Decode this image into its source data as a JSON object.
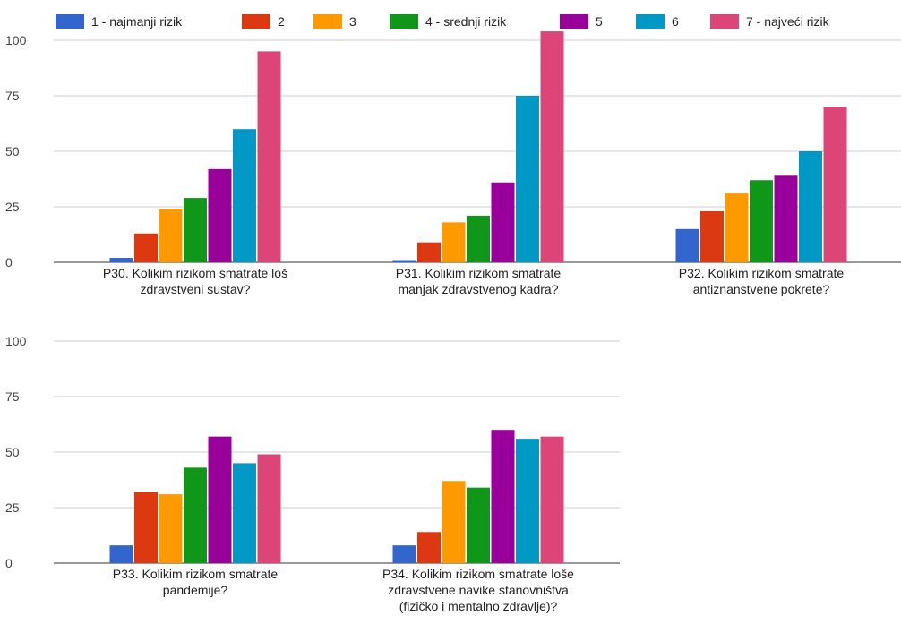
{
  "colors": [
    "#3366cc",
    "#dc3912",
    "#ff9900",
    "#109618",
    "#990099",
    "#0099c6",
    "#dd4477"
  ],
  "chart_data": {
    "type": "bar",
    "legend_position": "top",
    "grid": true,
    "ylim": [
      0,
      100
    ],
    "yticks": [
      0,
      25,
      50,
      75,
      100
    ],
    "series_names": [
      "1 - najmanji rizik",
      "2",
      "3",
      "4 - srednji rizik",
      "5",
      "6",
      "7 - najveći rizik"
    ],
    "categories": [
      {
        "label": [
          "P30. Kolikim rizikom smatrate loš",
          "zdravstveni sustav?"
        ],
        "values": [
          2,
          13,
          24,
          29,
          42,
          60,
          95
        ]
      },
      {
        "label": [
          "P31. Kolikim rizikom smatrate",
          "manjak zdravstvenog kadra?"
        ],
        "values": [
          1,
          9,
          18,
          21,
          36,
          75,
          104
        ]
      },
      {
        "label": [
          "P32. Kolikim rizikom smatrate",
          "antiznanstvene pokrete?"
        ],
        "values": [
          15,
          23,
          31,
          37,
          39,
          50,
          70
        ]
      },
      {
        "label": [
          "P33. Kolikim rizikom smatrate",
          "pandemije?"
        ],
        "values": [
          8,
          32,
          31,
          43,
          57,
          45,
          49
        ]
      },
      {
        "label": [
          "P34. Kolikim rizikom smatrate loše",
          "zdravstvene navike stanovništva",
          "(fizičko i mentalno zdravlje)?"
        ],
        "values": [
          8,
          14,
          37,
          34,
          60,
          56,
          57
        ]
      }
    ]
  }
}
